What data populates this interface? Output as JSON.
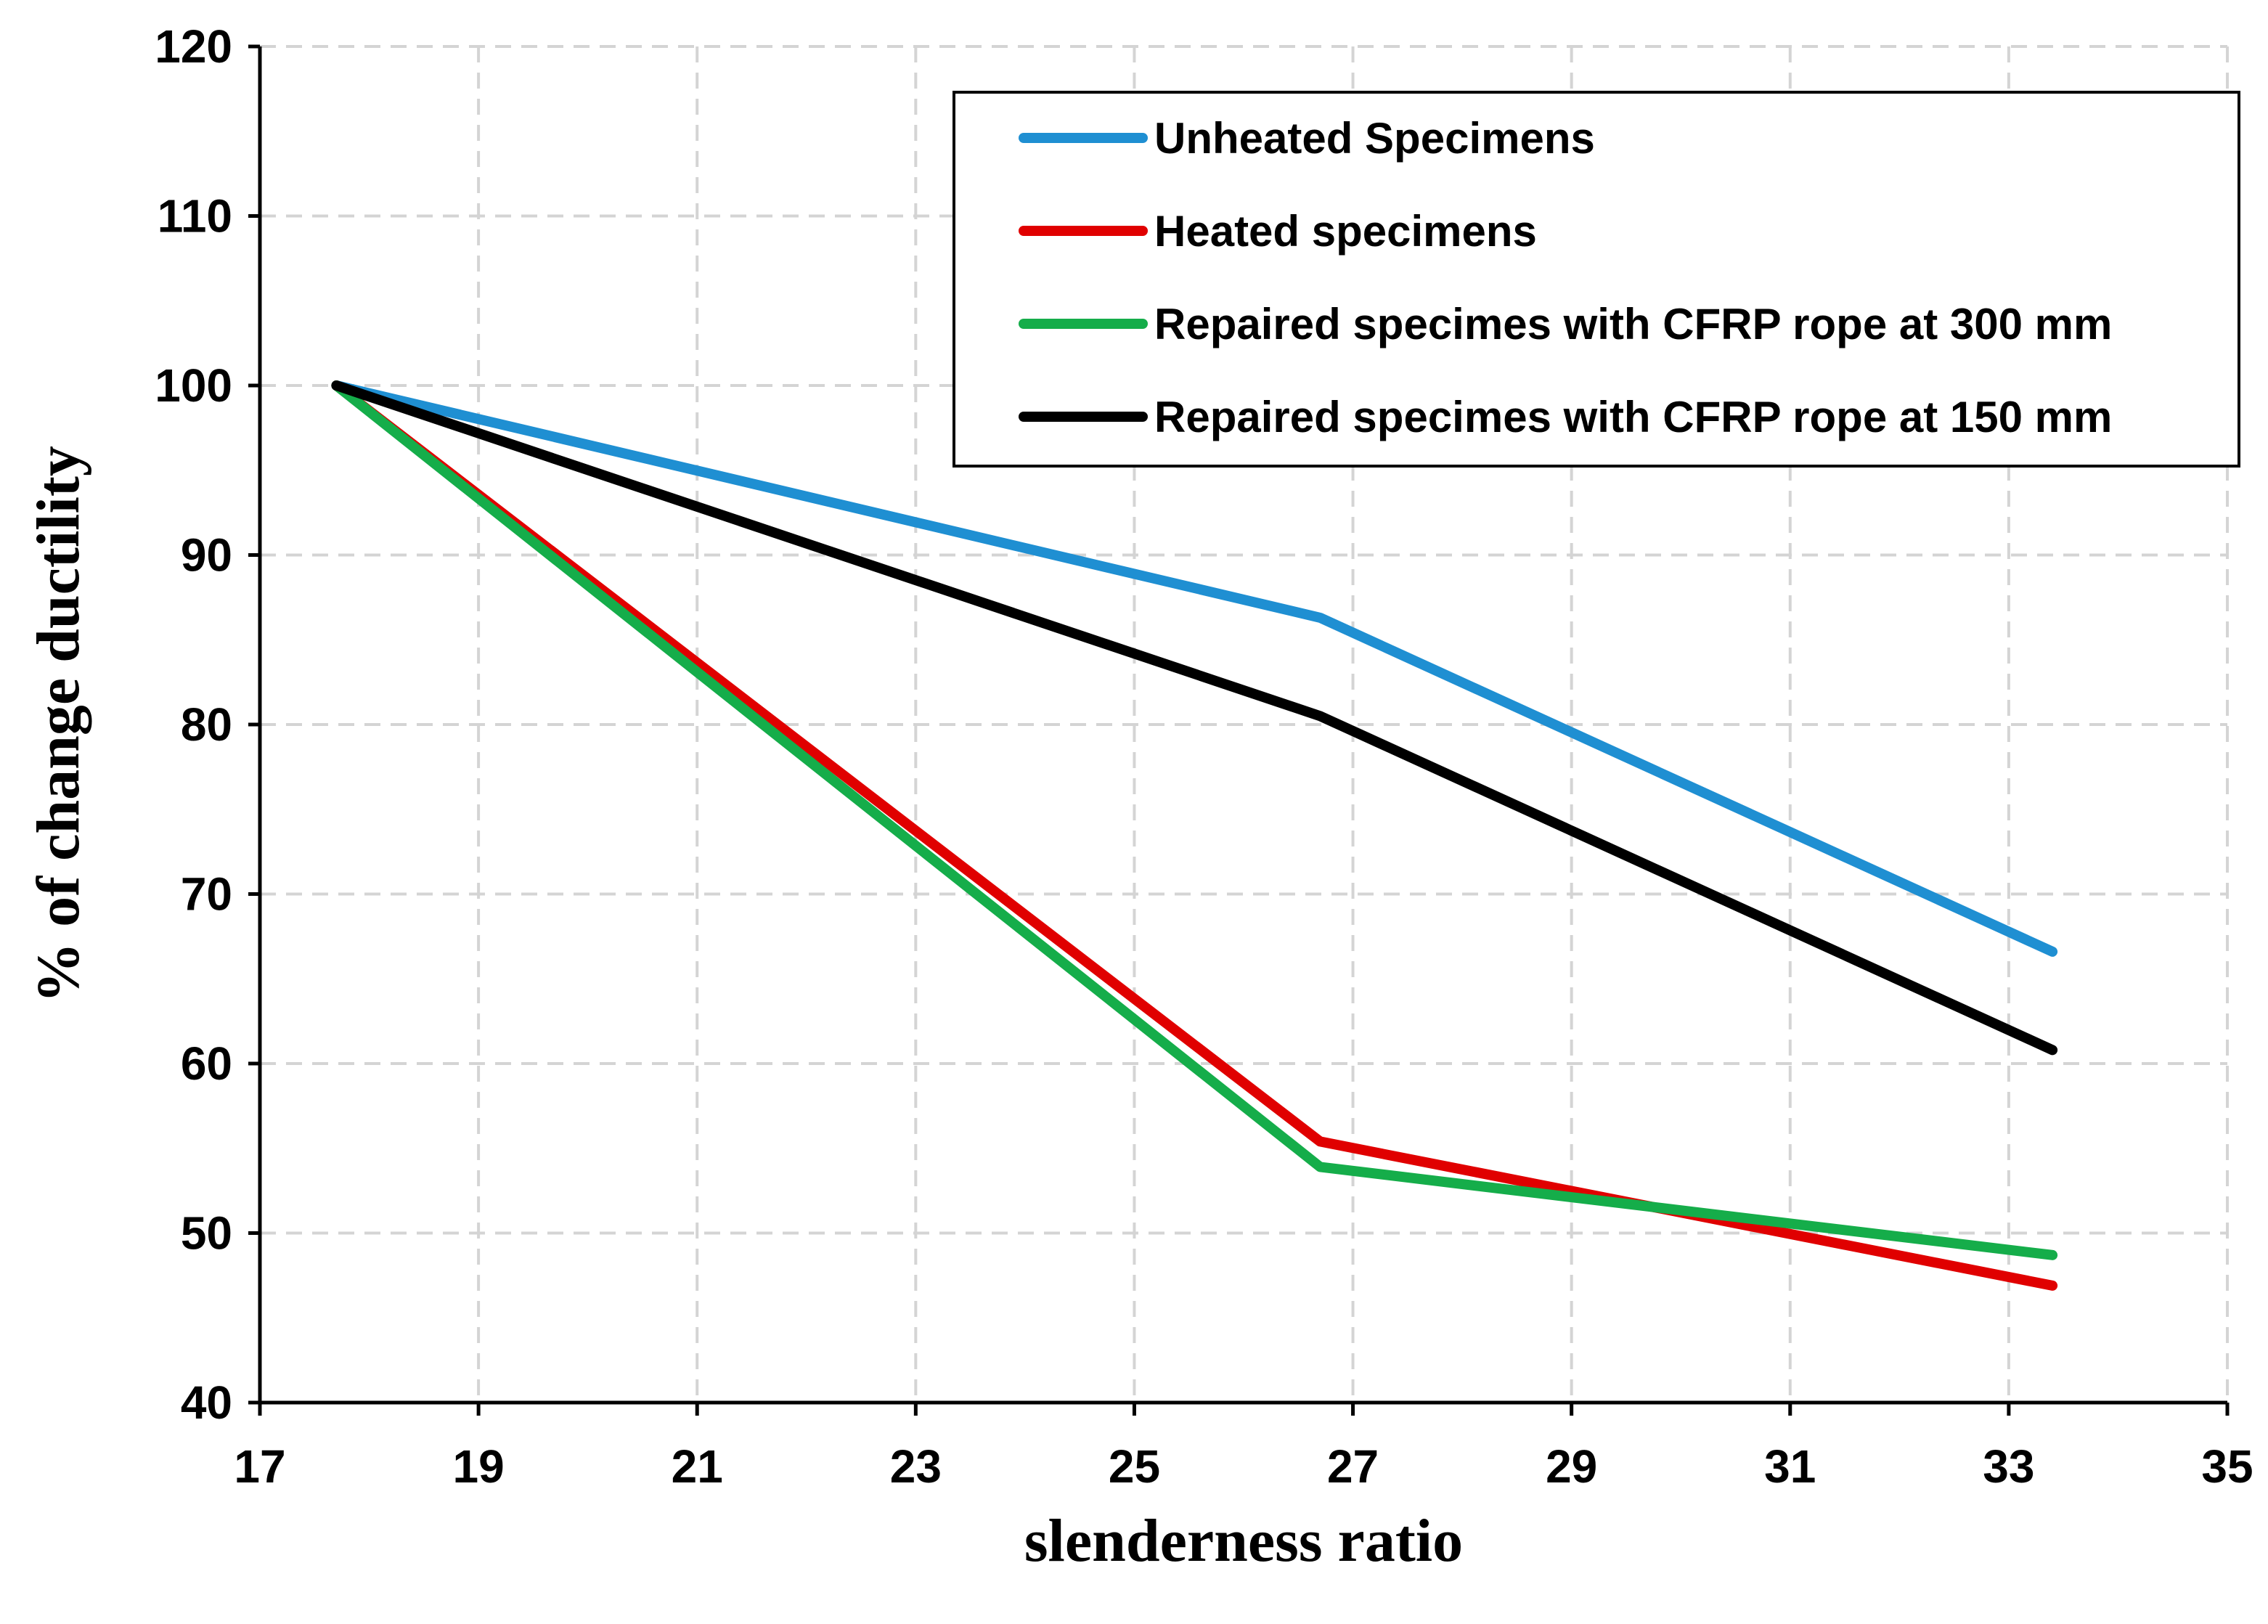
{
  "chart_data": {
    "type": "line",
    "title": "",
    "xlabel": "slenderness ratio",
    "ylabel": "% of change ductility",
    "xlim": [
      17,
      35
    ],
    "ylim": [
      40,
      120
    ],
    "xticks": [
      17,
      19,
      21,
      23,
      25,
      27,
      29,
      31,
      33,
      35
    ],
    "yticks": [
      40,
      50,
      60,
      70,
      80,
      90,
      100,
      110,
      120
    ],
    "grid": true,
    "legend_position": "top-right",
    "x": [
      17.7,
      26.7,
      33.4
    ],
    "series": [
      {
        "name": "Unheated Specimens",
        "color": "#1f8fd2",
        "values": [
          100,
          86.3,
          66.6
        ]
      },
      {
        "name": "Heated specimens",
        "color": "#e00000",
        "values": [
          100,
          55.4,
          46.9
        ]
      },
      {
        "name": "Repaired specimes with CFRP rope at 300 mm",
        "color": "#15ad4a",
        "values": [
          100,
          53.9,
          48.7
        ]
      },
      {
        "name": "Repaired specimes with CFRP rope at 150 mm",
        "color": "#000000",
        "values": [
          100,
          80.5,
          60.8
        ]
      }
    ]
  }
}
